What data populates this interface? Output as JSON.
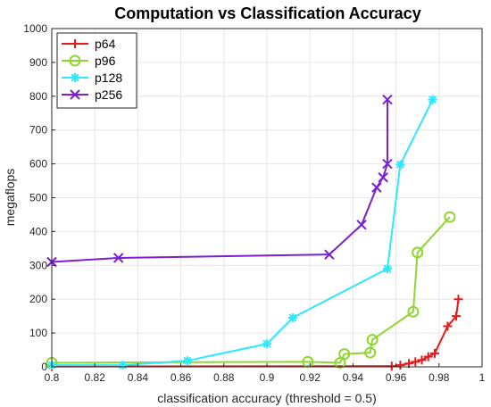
{
  "chart_data": {
    "type": "line",
    "title": "Computation vs Classification Accuracy",
    "xlabel": "classification accuracy (threshold = 0.5)",
    "ylabel": "megaflops",
    "xlim": [
      0.8,
      1.0
    ],
    "ylim": [
      0,
      1000
    ],
    "x_ticks": [
      "0.8",
      "0.82",
      "0.84",
      "0.86",
      "0.88",
      "0.9",
      "0.92",
      "0.94",
      "0.96",
      "0.98",
      "1"
    ],
    "y_ticks": [
      "0",
      "100",
      "200",
      "300",
      "400",
      "500",
      "600",
      "700",
      "800",
      "900",
      "1000"
    ],
    "grid": true,
    "legend_position": "top-left",
    "series": [
      {
        "name": "p64",
        "color": "#e41a1c",
        "marker": "plus",
        "points": [
          [
            0.8,
            1
          ],
          [
            0.958,
            2
          ],
          [
            0.962,
            5
          ],
          [
            0.966,
            10
          ],
          [
            0.969,
            15
          ],
          [
            0.972,
            20
          ],
          [
            0.975,
            30
          ],
          [
            0.978,
            40
          ],
          [
            0.984,
            120
          ],
          [
            0.988,
            150
          ],
          [
            0.989,
            200
          ]
        ]
      },
      {
        "name": "p96",
        "color": "#8fd630",
        "marker": "circle",
        "points": [
          [
            0.8,
            12
          ],
          [
            0.919,
            15
          ],
          [
            0.934,
            12
          ],
          [
            0.936,
            38
          ],
          [
            0.948,
            42
          ],
          [
            0.949,
            80
          ],
          [
            0.968,
            163
          ],
          [
            0.97,
            338
          ],
          [
            0.985,
            443
          ]
        ]
      },
      {
        "name": "p128",
        "color": "#2ee8ff",
        "marker": "asterisk",
        "points": [
          [
            0.8,
            5
          ],
          [
            0.833,
            5
          ],
          [
            0.863,
            18
          ],
          [
            0.9,
            68
          ],
          [
            0.912,
            145
          ],
          [
            0.956,
            290
          ],
          [
            0.962,
            598
          ],
          [
            0.977,
            790
          ]
        ]
      },
      {
        "name": "p256",
        "color": "#7b1fd1",
        "marker": "x",
        "points": [
          [
            0.8,
            310
          ],
          [
            0.831,
            322
          ],
          [
            0.929,
            332
          ],
          [
            0.944,
            420
          ],
          [
            0.951,
            530
          ],
          [
            0.954,
            560
          ],
          [
            0.956,
            600
          ],
          [
            0.956,
            790
          ]
        ]
      }
    ]
  }
}
